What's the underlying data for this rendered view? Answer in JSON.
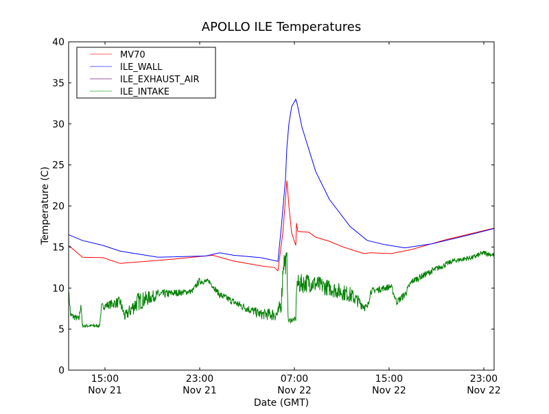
{
  "chart_data": {
    "type": "line",
    "title": "APOLLO ILE Temperatures",
    "xlabel": "Date (GMT)",
    "ylabel": "Temperature (C)",
    "x_units": "hours since Nov 21 00:00 GMT",
    "xlim": [
      11.93,
      47.87
    ],
    "ylim": [
      0,
      40
    ],
    "yticks": [
      0,
      5,
      10,
      15,
      20,
      25,
      30,
      35,
      40
    ],
    "xticks": [
      {
        "value": 15,
        "time": "15:00",
        "date": "Nov 21"
      },
      {
        "value": 23,
        "time": "23:00",
        "date": "Nov 21"
      },
      {
        "value": 31,
        "time": "07:00",
        "date": "Nov 22"
      },
      {
        "value": 39,
        "time": "15:00",
        "date": "Nov 22"
      },
      {
        "value": 47,
        "time": "23:00",
        "date": "Nov 22"
      }
    ],
    "grid": false,
    "legend_position": "top-left",
    "series": [
      {
        "name": "MV70",
        "color": "#ff0000",
        "legend_color": "#ff6060",
        "points": [
          [
            11.93,
            15.2
          ],
          [
            13.09,
            13.75
          ],
          [
            14.83,
            13.7
          ],
          [
            16.28,
            13.0
          ],
          [
            20.63,
            13.5
          ],
          [
            24.1,
            14.0
          ],
          [
            25.84,
            13.3
          ],
          [
            28.16,
            12.7
          ],
          [
            29.32,
            12.5
          ],
          [
            29.61,
            12.1
          ],
          [
            30.02,
            16.7
          ],
          [
            30.37,
            23.1
          ],
          [
            30.54,
            20.0
          ],
          [
            30.77,
            16.7
          ],
          [
            31.12,
            15.2
          ],
          [
            31.18,
            17.9
          ],
          [
            31.29,
            16.9
          ],
          [
            32.22,
            16.8
          ],
          [
            32.8,
            16.2
          ],
          [
            33.96,
            15.7
          ],
          [
            35.12,
            15.0
          ],
          [
            36.86,
            14.2
          ],
          [
            37.44,
            14.3
          ],
          [
            39.17,
            14.2
          ],
          [
            40.91,
            14.7
          ],
          [
            43.81,
            15.9
          ],
          [
            46.13,
            16.7
          ],
          [
            47.87,
            17.3
          ]
        ]
      },
      {
        "name": "ILE_WALL",
        "color": "#0000ff",
        "legend_color": "#6060ff",
        "points": [
          [
            11.93,
            16.5
          ],
          [
            13.09,
            15.8
          ],
          [
            14.83,
            15.2
          ],
          [
            16.28,
            14.5
          ],
          [
            19.47,
            13.75
          ],
          [
            23.52,
            13.9
          ],
          [
            24.39,
            14.2
          ],
          [
            24.68,
            14.3
          ],
          [
            25.84,
            14.0
          ],
          [
            28.16,
            13.7
          ],
          [
            29.61,
            13.25
          ],
          [
            29.9,
            17.5
          ],
          [
            30.25,
            23.3
          ],
          [
            30.37,
            27.2
          ],
          [
            30.54,
            30.0
          ],
          [
            30.77,
            32.1
          ],
          [
            31.12,
            33.0
          ],
          [
            31.23,
            32.5
          ],
          [
            31.64,
            29.6
          ],
          [
            32.8,
            24.2
          ],
          [
            33.96,
            20.8
          ],
          [
            35.7,
            17.5
          ],
          [
            37.15,
            15.8
          ],
          [
            38.6,
            15.3
          ],
          [
            40.33,
            14.9
          ],
          [
            42.65,
            15.4
          ],
          [
            45.55,
            16.4
          ],
          [
            47.87,
            17.25
          ]
        ]
      },
      {
        "name": "ILE_EXHAUST_AIR",
        "color": "#800080",
        "legend_color": "#9a509a",
        "points": []
      },
      {
        "name": "ILE_INTAKE",
        "color": "#007f00",
        "legend_color": "#60c060",
        "points": [
          [
            11.93,
            9.6,
            0.3
          ],
          [
            12.1,
            6.7,
            0.4
          ],
          [
            12.8,
            6.2,
            0.4
          ],
          [
            12.97,
            8.0,
            0.3
          ],
          [
            13.09,
            5.4,
            0.2
          ],
          [
            14.54,
            5.4,
            0.2
          ],
          [
            14.71,
            7.75,
            0.4
          ],
          [
            16.28,
            8.3,
            0.7
          ],
          [
            16.68,
            6.5,
            0.6
          ],
          [
            17.73,
            8.3,
            1.2
          ],
          [
            19.47,
            9.2,
            0.6
          ],
          [
            22.36,
            9.6,
            0.3
          ],
          [
            22.94,
            10.8,
            0.4
          ],
          [
            23.81,
            10.8,
            0.3
          ],
          [
            24.68,
            9.2,
            0.4
          ],
          [
            26.42,
            7.9,
            0.5
          ],
          [
            28.16,
            6.8,
            0.6
          ],
          [
            29.61,
            6.8,
            0.9
          ],
          [
            29.9,
            8.3,
            1.2
          ],
          [
            30.07,
            13.3,
            1.5
          ],
          [
            30.37,
            13.0,
            1.5
          ],
          [
            30.48,
            6.0,
            0.3
          ],
          [
            31.12,
            6.2,
            0.3
          ],
          [
            31.18,
            10.4,
            1.2
          ],
          [
            32.22,
            10.7,
            1.2
          ],
          [
            33.96,
            10.0,
            1.0
          ],
          [
            35.7,
            9.2,
            1.0
          ],
          [
            37.15,
            7.5,
            0.5
          ],
          [
            37.44,
            9.6,
            0.4
          ],
          [
            39.17,
            10.2,
            0.4
          ],
          [
            39.64,
            8.3,
            0.4
          ],
          [
            40.33,
            9.2,
            0.5
          ],
          [
            40.91,
            10.8,
            0.4
          ],
          [
            42.65,
            12.1,
            0.4
          ],
          [
            44.39,
            13.3,
            0.3
          ],
          [
            46.13,
            13.75,
            0.3
          ],
          [
            47.0,
            14.3,
            0.3
          ],
          [
            47.87,
            14.0,
            0.3
          ]
        ]
      }
    ]
  }
}
